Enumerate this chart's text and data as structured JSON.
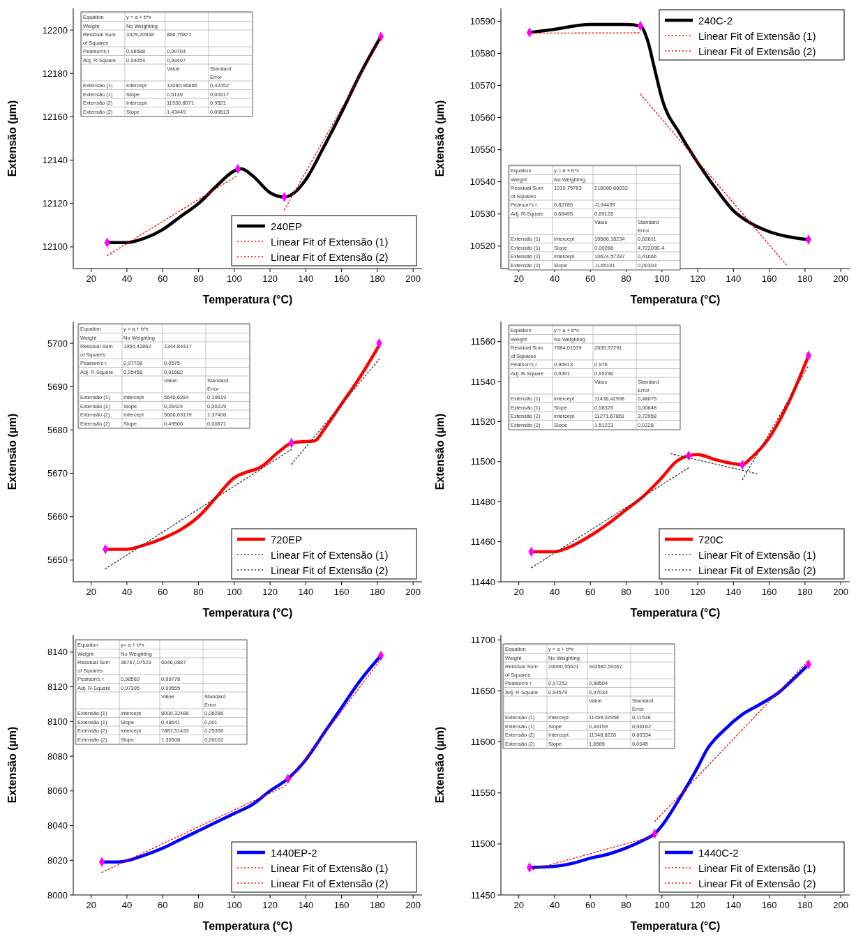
{
  "chart_data": [
    {
      "type": "line",
      "xlabel": "Temperatura (°C)",
      "ylabel": "Extensão (µm)",
      "xlim": [
        10,
        205
      ],
      "xticks": [
        20,
        40,
        60,
        80,
        100,
        120,
        140,
        160,
        180,
        200
      ],
      "ylim": [
        12090,
        12210
      ],
      "yticks": [
        12100,
        12120,
        12140,
        12160,
        12180,
        12200
      ],
      "legend": "bottom right",
      "series": [
        {
          "name": "240EP",
          "color": "#000000",
          "line_style": "solid",
          "x": [
            29,
            40,
            50,
            60,
            70,
            80,
            90,
            100,
            104,
            110,
            120,
            128,
            135,
            140,
            150,
            160,
            170,
            182
          ],
          "values": [
            12102,
            12102,
            12104,
            12108,
            12114,
            12120,
            12128,
            12135,
            12136,
            12133,
            12125,
            12123,
            12126,
            12131,
            12146,
            12162,
            12179,
            12197
          ]
        },
        {
          "name": "Linear Fit of Extensão (1)",
          "color": "#ff0000",
          "line_style": "dotted",
          "x": [
            29,
            102
          ],
          "values": [
            12096,
            12133
          ]
        },
        {
          "name": "Linear Fit of Extensão (2)",
          "color": "#ff0000",
          "line_style": "dotted",
          "x": [
            128,
            182
          ],
          "values": [
            12117,
            12196
          ]
        },
        {
          "type": "scatter",
          "marker": "diamond",
          "color": "#ff00ff",
          "x": [
            29,
            102,
            128,
            182
          ],
          "values": [
            12102,
            12136,
            12123,
            12197
          ]
        }
      ],
      "annotations": [
        "Equation\ty = a + b*x",
        "Weight\tNo Weighting",
        "Residual Sum of Squares\t3329,20948\t866,75877",
        "Pearson's r\t0,96588\t0,99704",
        "Adj. R-Square\t0,94054\t0,99407",
        "\t\tValue\tStandard Error",
        "Extensão (1)\tIntercept\t12080,96866\t0,42452",
        "Extensão (1)\tSlope\t0,5139\t0,00617",
        "Extensão (2)\tIntercept\t11930,8071\t0,9521",
        "Extensão (2)\tSlope\t1,43449\t0,00613"
      ]
    },
    {
      "type": "line",
      "xlabel": "Temperatura (°C)",
      "ylabel": "Extensão (µm)",
      "xlim": [
        10,
        205
      ],
      "xticks": [
        20,
        40,
        60,
        80,
        100,
        120,
        140,
        160,
        180,
        200
      ],
      "ylim": [
        10513,
        10594
      ],
      "yticks": [
        10520,
        10530,
        10540,
        10550,
        10560,
        10570,
        10580,
        10590
      ],
      "legend": "top right",
      "series": [
        {
          "name": "240C-2",
          "color": "#000000",
          "line_style": "solid",
          "x": [
            26,
            40,
            60,
            80,
            88,
            92,
            96,
            100,
            110,
            120,
            130,
            140,
            150,
            160,
            170,
            182
          ],
          "values": [
            10586.5,
            10587.5,
            10589,
            10589,
            10588.5,
            10584,
            10575,
            10566,
            10555,
            10546,
            10538,
            10531,
            10527,
            10524.5,
            10523,
            10522
          ]
        },
        {
          "name": "Linear Fit of Extensão (1)",
          "color": "#ff0000",
          "line_style": "dotted",
          "x": [
            26,
            88
          ],
          "values": [
            10586.3,
            10586.4
          ]
        },
        {
          "name": "Linear Fit of Extensão (2)",
          "color": "#ff0000",
          "line_style": "dotted",
          "x": [
            88,
            170
          ],
          "values": [
            10567.3,
            10513.9
          ]
        },
        {
          "type": "scatter",
          "marker": "diamond",
          "color": "#ff00ff",
          "x": [
            26,
            88,
            182
          ],
          "values": [
            10586.5,
            10588.5,
            10522
          ]
        }
      ],
      "annotations": [
        "Equation\ty = a + b*x",
        "Weight\tNo Weighting",
        "Residual Sum of Squares\t1010,75783\t216080,66032",
        "Pearson's r\t0,82785\t-0,94439",
        "Adj. R-Square\t0,68495\t0,89128",
        "\t\tValue\tStandard Error",
        "Extensão (1)\tIntercept\t10586,18234\t0,02611",
        "Extensão (1)\tSlope\t0,00288\t4,72209E-4",
        "Extensão (2)\tIntercept\t10624,57287\t0,41666",
        "Extensão (2)\tSlope\t-0,65101\t0,00303"
      ]
    },
    {
      "type": "line",
      "xlabel": "Temperatura (°C)",
      "ylabel": "Extensão (µm)",
      "xlim": [
        10,
        205
      ],
      "xticks": [
        20,
        40,
        60,
        80,
        100,
        120,
        140,
        160,
        180,
        200
      ],
      "ylim": [
        5645,
        5705
      ],
      "yticks": [
        5650,
        5660,
        5670,
        5680,
        5690,
        5700
      ],
      "legend": "bottom right",
      "series": [
        {
          "name": "720EP",
          "color": "#ff0000",
          "line_style": "solid",
          "x": [
            28,
            40,
            50,
            60,
            70,
            80,
            90,
            100,
            105,
            115,
            125,
            132,
            138,
            145,
            150,
            160,
            170,
            181
          ],
          "values": [
            5652.5,
            5652.5,
            5653.5,
            5655,
            5657,
            5660,
            5664.5,
            5669,
            5670,
            5671.5,
            5675,
            5677,
            5677.3,
            5677.5,
            5680,
            5686,
            5692,
            5699.5
          ]
        },
        {
          "name": "Linear Fit of Extensão (1)",
          "color": "#333333",
          "line_style": "dotted",
          "x": [
            28,
            132
          ],
          "values": [
            5648,
            5675.5
          ]
        },
        {
          "name": "Linear Fit of Extensão (2)",
          "color": "#333333",
          "line_style": "dotted",
          "x": [
            132,
            181
          ],
          "values": [
            5672.1,
            5696.3
          ]
        },
        {
          "type": "scatter",
          "marker": "diamond",
          "color": "#ff00ff",
          "x": [
            28,
            132,
            181
          ],
          "values": [
            5652.5,
            5677,
            5700
          ]
        }
      ],
      "annotations": [
        "Equation\ty = a + b*x",
        "Weight\tNo Weighting",
        "Residual Sum of Squares\t1954,42862\t1344,84417",
        "Pearson's r\t0,97708\t0,9575",
        "Adj. R-Square\t0,95458\t0,91682",
        "\t\tValue\tStandard Error",
        "Extensão (1)\tIntercept\t5640,6284\t0,19619",
        "Extensão (1)\tSlope\t0,26424\t0,00229",
        "Extensão (2)\tIntercept\t5606,63179\t1,37406",
        "Extensão (2)\tSlope\t0,49566\t0,00871"
      ]
    },
    {
      "type": "line",
      "xlabel": "Temperatura (°C)",
      "ylabel": "Extensão (µm)",
      "xlim": [
        10,
        205
      ],
      "xticks": [
        20,
        40,
        60,
        80,
        100,
        120,
        140,
        160,
        180,
        200
      ],
      "ylim": [
        11440,
        11570
      ],
      "yticks": [
        11440,
        11460,
        11480,
        11500,
        11520,
        11540,
        11560
      ],
      "legend": "bottom right",
      "series": [
        {
          "name": "720C",
          "color": "#ff0000",
          "line_style": "solid",
          "x": [
            27,
            40,
            50,
            60,
            70,
            80,
            90,
            100,
            108,
            115,
            120,
            130,
            140,
            145,
            150,
            160,
            170,
            182
          ],
          "values": [
            11455,
            11455,
            11458,
            11463,
            11469,
            11476,
            11483,
            11492,
            11500,
            11503,
            11503.5,
            11501,
            11499,
            11498.5,
            11502,
            11512,
            11528,
            11553
          ]
        },
        {
          "name": "Linear Fit of Extensão (1)",
          "color": "#333333",
          "line_style": "dotted",
          "x": [
            27,
            115
          ],
          "values": [
            11447,
            11497
          ]
        },
        {
          "name": "Linear Fit of Extensão (2)",
          "color": "#333333",
          "line_style": "dotted",
          "x": [
            105,
            153,
            150,
            145,
            182
          ],
          "values": [
            11504,
            11494,
            null,
            11491,
            11548
          ]
        },
        {
          "type": "scatter",
          "marker": "diamond",
          "color": "#ff00ff",
          "x": [
            27,
            115,
            145,
            182
          ],
          "values": [
            11455,
            11503,
            11498.5,
            11553
          ]
        }
      ],
      "annotations": [
        "Equation\ty = a + b*x",
        "Weight\tNo Weighting",
        "Residual Sum of Squares\t7684,01539\t2635,97291",
        "Pearson's r\t0,96913\t0,976",
        "Adj. R-Square\t0,9391\t0,95236",
        "\t\tValue\tStandard Error",
        "Extensão (1)\tIntercept\t11436,42998\t0,48675",
        "Extensão (1)\tSlope\t0,58325\t0,00648",
        "Extensão (2)\tIntercept\t11271,67861\t3,72958",
        "Extensão (2)\tSlope\t1,51223\t0,0228"
      ]
    },
    {
      "type": "line",
      "xlabel": "Temperatura (°C)",
      "ylabel": "Extensão (µm)",
      "xlim": [
        10,
        205
      ],
      "xticks": [
        20,
        40,
        60,
        80,
        100,
        120,
        140,
        160,
        180,
        200
      ],
      "ylim": [
        8000,
        8150
      ],
      "yticks": [
        8000,
        8020,
        8040,
        8060,
        8080,
        8100,
        8120,
        8140
      ],
      "legend": "bottom right",
      "series": [
        {
          "name": "1440EP-2",
          "color": "#0000ff",
          "line_style": "solid",
          "x": [
            26,
            35,
            50,
            60,
            70,
            80,
            90,
            100,
            110,
            120,
            130,
            140,
            150,
            160,
            170,
            182
          ],
          "values": [
            8019,
            8019,
            8023,
            8027,
            8032,
            8037,
            8042,
            8047,
            8052,
            8060,
            8067,
            8078,
            8093,
            8108,
            8123,
            8138
          ]
        },
        {
          "name": "Linear Fit of Extensão (1)",
          "color": "#ff0000",
          "line_style": "dotted",
          "x": [
            26,
            130
          ],
          "values": [
            8013,
            8063.6
          ]
        },
        {
          "name": "Linear Fit of Extensão (2)",
          "color": "#ff0000",
          "line_style": "dotted",
          "x": [
            130,
            182
          ],
          "values": [
            8065,
            8135.9
          ]
        },
        {
          "type": "scatter",
          "marker": "diamond",
          "color": "#ff00ff",
          "x": [
            26,
            130,
            182
          ],
          "values": [
            8019,
            8067,
            8138
          ]
        }
      ],
      "annotations": [
        "Equation\ty= a + b*x",
        "Weight\tNo Weighting",
        "Residual Sum of Squares\t36767,07523\t6046,0887",
        "Pearson's r\t0,98589\t0,99778",
        "Adj. R-Square\t0,97395\t0,99555",
        "\t\tValue\tStandard Error",
        "Extensão (1)\tIntercept\t8000,32488\t0,06286",
        "Extensão (1)\tSlope\t0,48641\t0,001",
        "Extensão (2)\tIntercept\t7887,51433\t0,25358",
        "Extensão (2)\tSlope\t1,36508\t0,00162"
      ]
    },
    {
      "type": "line",
      "xlabel": "Temperatura (°C)",
      "ylabel": "Extensão (µm)",
      "xlim": [
        10,
        205
      ],
      "xticks": [
        20,
        40,
        60,
        80,
        100,
        120,
        140,
        160,
        180,
        200
      ],
      "ylim": [
        11450,
        11705
      ],
      "yticks": [
        11450,
        11500,
        11550,
        11600,
        11650,
        11700
      ],
      "legend": "bottom right",
      "series": [
        {
          "name": "1440C-2",
          "color": "#0000ff",
          "line_style": "solid",
          "x": [
            26,
            40,
            50,
            60,
            70,
            80,
            90,
            96,
            100,
            110,
            120,
            125,
            135,
            145,
            155,
            165,
            175,
            182
          ],
          "values": [
            11477,
            11478,
            11481,
            11486,
            11490,
            11496,
            11504,
            11510,
            11518,
            11545,
            11575,
            11592,
            11612,
            11627,
            11637,
            11648,
            11664,
            11676
          ]
        },
        {
          "name": "Linear Fit of Extensão (1)",
          "color": "#ff0000",
          "line_style": "dotted",
          "x": [
            26,
            96
          ],
          "values": [
            11474,
            11508
          ]
        },
        {
          "name": "Linear Fit of Extensão (2)",
          "color": "#ff0000",
          "line_style": "dotted",
          "x": [
            96,
            182
          ],
          "values": [
            11522,
            11680
          ]
        },
        {
          "type": "scatter",
          "marker": "diamond",
          "color": "#ff00ff",
          "x": [
            26,
            96,
            182
          ],
          "values": [
            11477,
            11510,
            11676
          ]
        }
      ],
      "annotations": [
        "Equation\ty = a + b*x",
        "Weight\tNo Weighting",
        "Residual Sum of Squares\t20090,95621\t343582,50067",
        "Pearson's r\t0,97252\t0,98504",
        "Adj. R-Square\t0,94579\t0,97034",
        "\t\tValue\tStandard Error",
        "Extensão (1)\tIntercept\t11459,02958\t0,11538",
        "Extensão (1)\tSlope\t0,49159\t0,06162",
        "Extensão (2)\tIntercept\t11348,8226\t0,60334",
        "Extensão (2)\tSlope\t1,6565\t0,0045"
      ]
    }
  ]
}
